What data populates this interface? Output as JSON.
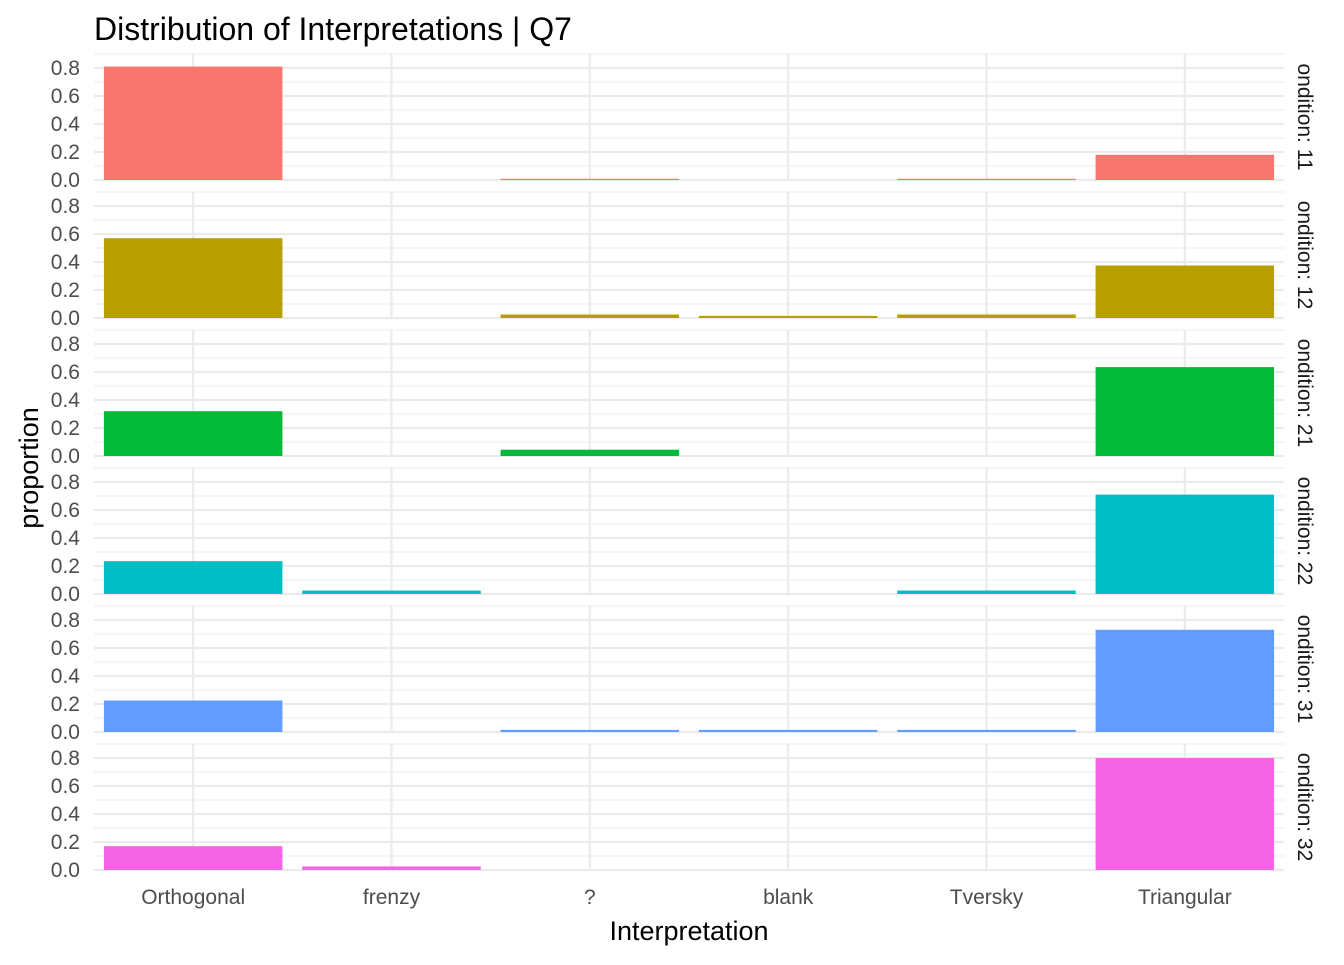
{
  "chart_data": {
    "type": "bar",
    "title": "Distribution of Interpretations | Q7",
    "xlabel": "Interpretation",
    "ylabel": "proportion",
    "categories": [
      "Orthogonal",
      "frenzy",
      "?",
      "blank",
      "Tversky",
      "Triangular"
    ],
    "ylim": [
      0,
      0.8
    ],
    "yticks": [
      "0.0",
      "0.2",
      "0.4",
      "0.6",
      "0.8"
    ],
    "grid": true,
    "legend": "none",
    "facets": [
      {
        "label": "ondition: 11",
        "color": "#F8766D",
        "values": [
          0.81,
          0.0,
          0.005,
          0.0,
          0.005,
          0.18
        ]
      },
      {
        "label": "ondition: 12",
        "color": "#B79F00",
        "values": [
          0.57,
          0.0,
          0.025,
          0.015,
          0.025,
          0.375
        ]
      },
      {
        "label": "ondition: 21",
        "color": "#00BA38",
        "values": [
          0.32,
          0.0,
          0.045,
          0.0,
          0.0,
          0.635
        ]
      },
      {
        "label": "ondition: 22",
        "color": "#00BFC4",
        "values": [
          0.235,
          0.025,
          0.0,
          0.0,
          0.025,
          0.71
        ]
      },
      {
        "label": "ondition: 31",
        "color": "#619CFF",
        "values": [
          0.225,
          0.0,
          0.015,
          0.015,
          0.015,
          0.73
        ]
      },
      {
        "label": "ondition: 32",
        "color": "#F564E3",
        "values": [
          0.17,
          0.025,
          0.0,
          0.0,
          0.0,
          0.8
        ]
      }
    ]
  }
}
